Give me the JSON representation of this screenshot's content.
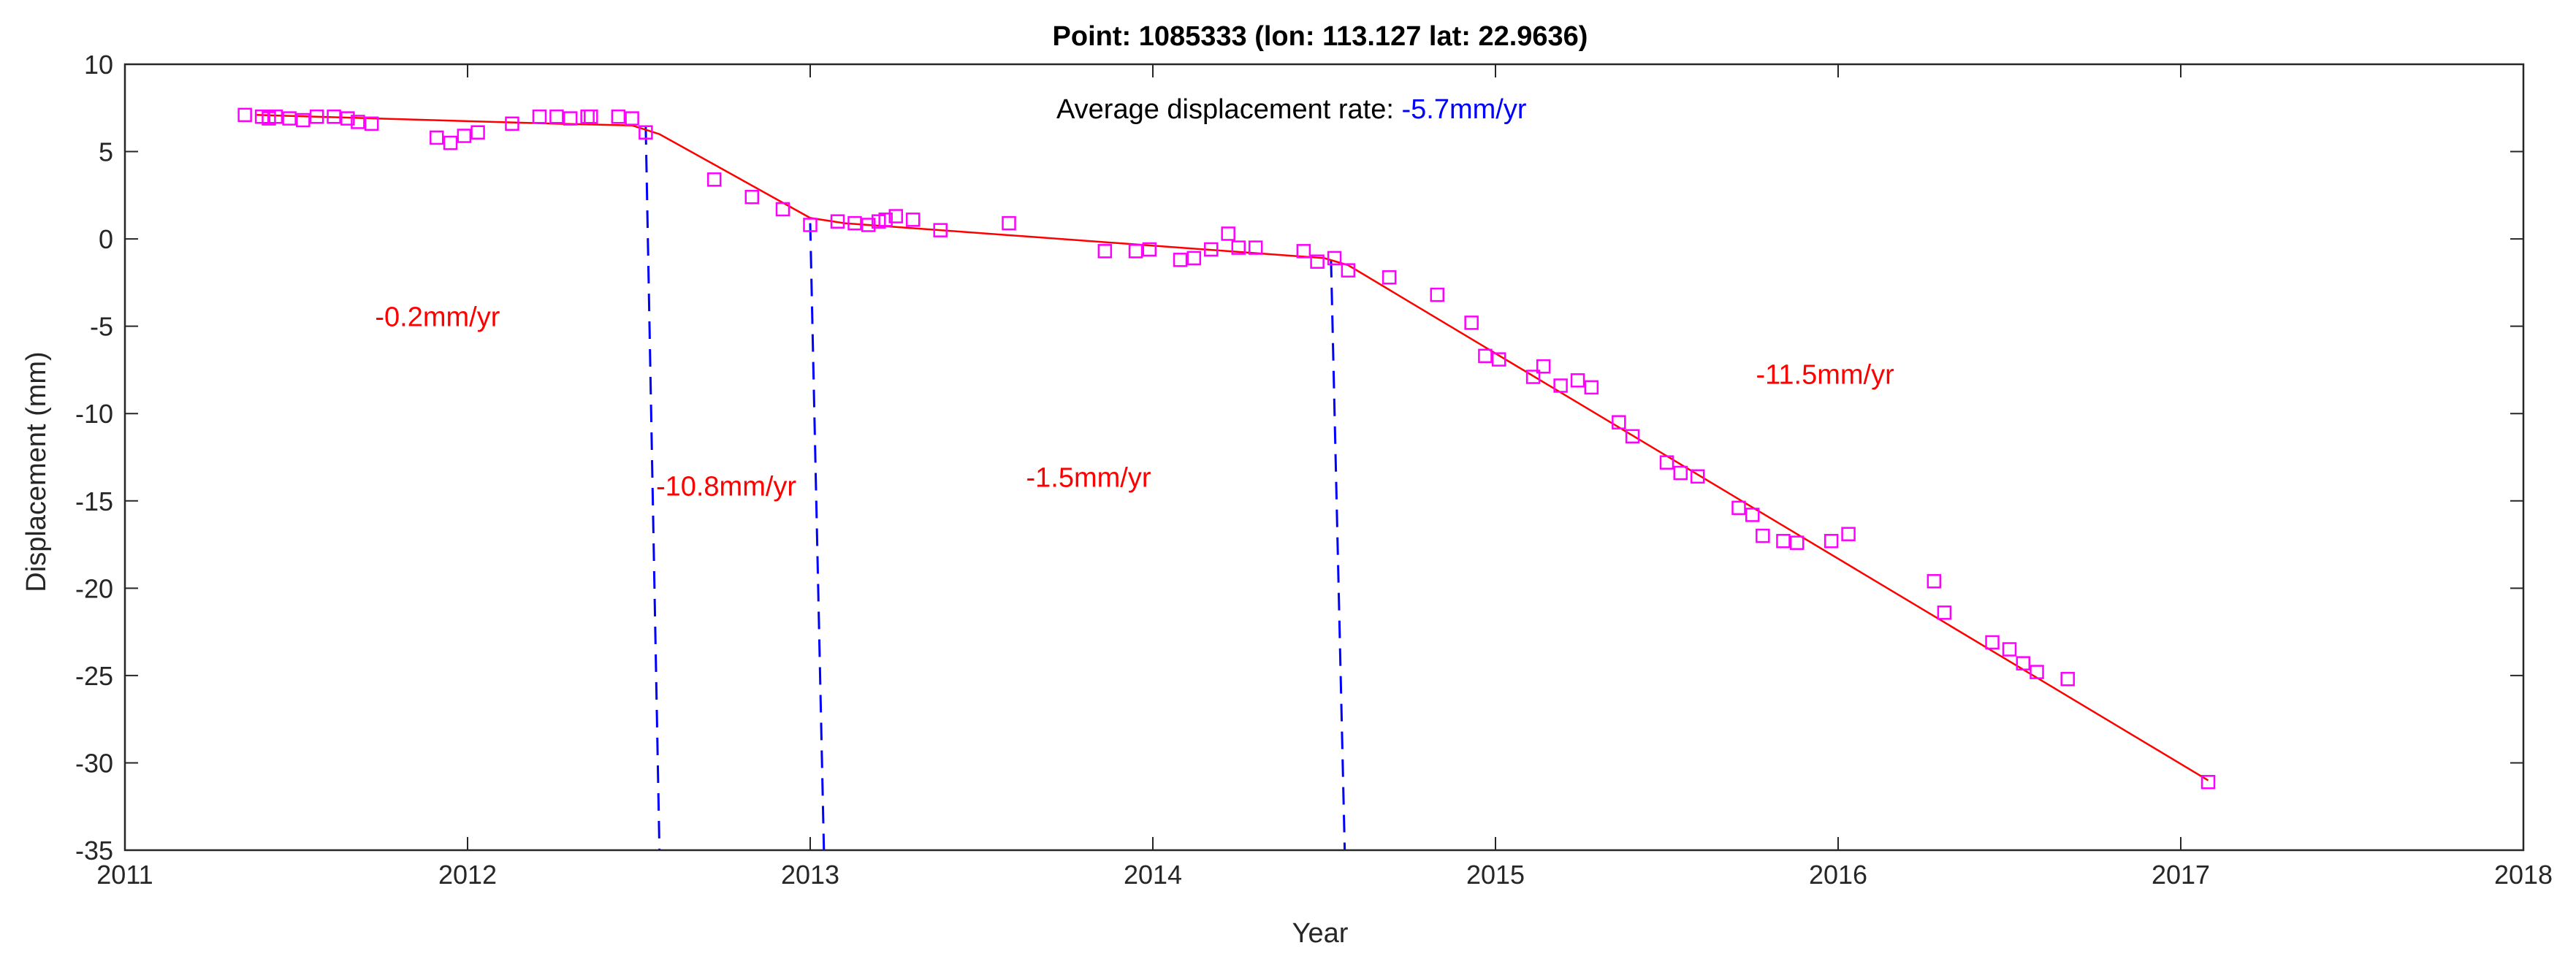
{
  "chart_data": {
    "type": "scatter",
    "title": "Point: 1085333 (lon: 113.127 lat: 22.9636)",
    "xlabel": "Year",
    "ylabel": "Displacement (mm)",
    "xlim": [
      2011,
      2018
    ],
    "ylim": [
      -35,
      10
    ],
    "xticks": [
      2011,
      2012,
      2013,
      2014,
      2015,
      2016,
      2017,
      2018
    ],
    "yticks": [
      10,
      5,
      0,
      -5,
      -10,
      -15,
      -20,
      -25,
      -30,
      -35
    ],
    "grid": false,
    "colors": {
      "points": "#ff00ff",
      "fit": "#ff0000",
      "breaks": "#0000ff",
      "axes": "#262626",
      "rate_text": "#ff0000",
      "avg_value": "#0000ff"
    },
    "average_rate": {
      "label": "Average displacement rate: ",
      "value": "-5.7mm/yr"
    },
    "segment_rates": [
      {
        "text": "-0.2mm/yr",
        "x": 2011.73,
        "y": -5.0
      },
      {
        "text": "-10.8mm/yr",
        "x": 2012.55,
        "y": -14.7
      },
      {
        "text": "-1.5mm/yr",
        "x": 2013.63,
        "y": -14.2
      },
      {
        "text": "-11.5mm/yr",
        "x": 2015.76,
        "y": -8.3
      }
    ],
    "breakpoints": [
      {
        "top": [
          2012.52,
          6.4
        ],
        "bottom": [
          2012.56,
          -35
        ]
      },
      {
        "top": [
          2013.0,
          0.9
        ],
        "bottom": [
          2013.04,
          -35
        ]
      },
      {
        "top": [
          2014.52,
          -1.2
        ],
        "bottom": [
          2014.56,
          -35
        ]
      }
    ],
    "fit_line": {
      "x": [
        2011.38,
        2012.25,
        2012.48,
        2012.56,
        2013.0,
        2013.1,
        2014.5,
        2014.57,
        2017.08
      ],
      "y": [
        7.1,
        6.6,
        6.5,
        6.0,
        1.2,
        0.9,
        -1.1,
        -1.5,
        -31.0
      ]
    },
    "points": {
      "x": [
        2011.35,
        2011.4,
        2011.42,
        2011.44,
        2011.48,
        2011.52,
        2011.56,
        2011.61,
        2011.65,
        2011.68,
        2011.72,
        2011.91,
        2011.95,
        2011.99,
        2012.03,
        2012.13,
        2012.21,
        2012.26,
        2012.3,
        2012.35,
        2012.36,
        2012.44,
        2012.48,
        2012.52,
        2012.72,
        2012.83,
        2012.92,
        2013.0,
        2013.08,
        2013.13,
        2013.17,
        2013.2,
        2013.22,
        2013.25,
        2013.3,
        2013.38,
        2013.58,
        2013.86,
        2013.95,
        2013.99,
        2014.08,
        2014.12,
        2014.17,
        2014.22,
        2014.25,
        2014.3,
        2014.44,
        2014.48,
        2014.53,
        2014.57,
        2014.69,
        2014.83,
        2014.93,
        2014.97,
        2015.01,
        2015.11,
        2015.14,
        2015.19,
        2015.24,
        2015.28,
        2015.36,
        2015.4,
        2015.5,
        2015.54,
        2015.59,
        2015.71,
        2015.75,
        2015.78,
        2015.84,
        2015.88,
        2015.98,
        2016.03,
        2016.28,
        2016.31,
        2016.45,
        2016.5,
        2016.54,
        2016.58,
        2016.67,
        2017.08
      ],
      "y": [
        7.1,
        7.0,
        6.9,
        7.0,
        6.9,
        6.8,
        7.0,
        7.0,
        6.9,
        6.7,
        6.6,
        5.8,
        5.5,
        5.9,
        6.1,
        6.6,
        7.0,
        7.0,
        6.9,
        7.0,
        7.0,
        7.0,
        6.9,
        6.1,
        3.4,
        2.4,
        1.7,
        0.8,
        1.0,
        0.9,
        0.8,
        1.0,
        1.1,
        1.3,
        1.1,
        0.5,
        0.9,
        -0.7,
        -0.7,
        -0.6,
        -1.2,
        -1.1,
        -0.6,
        0.3,
        -0.5,
        -0.5,
        -0.7,
        -1.3,
        -1.1,
        -1.8,
        -2.2,
        -3.2,
        -4.8,
        -6.7,
        -6.9,
        -7.9,
        -7.3,
        -8.4,
        -8.1,
        -8.5,
        -10.5,
        -11.3,
        -12.8,
        -13.4,
        -13.6,
        -15.4,
        -15.8,
        -17.0,
        -17.3,
        -17.4,
        -17.3,
        -16.9,
        -19.6,
        -21.4,
        -23.1,
        -23.5,
        -24.3,
        -24.8,
        -25.2,
        -31.1
      ]
    }
  }
}
